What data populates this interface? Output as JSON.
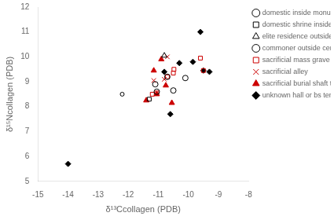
{
  "chart_data": {
    "type": "scatter",
    "xlabel": "δ¹³Ccollagen (PDB)",
    "ylabel": "δ¹⁵Ncollagen (PDB)",
    "xlim": [
      -15,
      -8
    ],
    "ylim": [
      5,
      12
    ],
    "xticks": [
      -15,
      -14,
      -13,
      -12,
      -11,
      -10,
      -9,
      -8
    ],
    "yticks": [
      5,
      6,
      7,
      8,
      9,
      10,
      11,
      12
    ],
    "grid": false,
    "legend": "right",
    "series": [
      {
        "name": "domestic inside monumental zone",
        "color": "#000000",
        "marker": "open_circle",
        "x": [
          -11.1,
          -11.05,
          -10.7,
          -10.5,
          -10.1
        ],
        "values": [
          8.9,
          8.6,
          9.2,
          8.65,
          9.15
        ]
      },
      {
        "name": "domestic shrine inside",
        "color": "#000000",
        "marker": "open_square",
        "x": [
          -11.3
        ],
        "values": [
          8.3
        ]
      },
      {
        "name": "elite residence outside center",
        "color": "#000000",
        "marker": "open_triangle",
        "x": [
          -10.8
        ],
        "values": [
          10.05
        ]
      },
      {
        "name": "commoner outside center",
        "color": "#000000",
        "marker": "small_open_circle",
        "x": [
          -12.2
        ],
        "values": [
          8.5
        ]
      },
      {
        "name": "sacrificial mass grave",
        "color": "#cc0000",
        "marker": "open_square",
        "x": [
          -11.2,
          -11.05,
          -10.7,
          -10.5,
          -10.48,
          -9.6,
          -9.5
        ],
        "values": [
          8.5,
          8.55,
          9.2,
          9.35,
          9.5,
          9.95,
          9.45
        ]
      },
      {
        "name": "sacrificial alley",
        "color": "#cc0000",
        "marker": "x",
        "x": [
          -11.15,
          -10.8,
          -10.7
        ],
        "values": [
          9.05,
          9.1,
          10.0
        ]
      },
      {
        "name": "sacrificial burial shaft temple",
        "color": "#cc0000",
        "marker": "filled_triangle",
        "x": [
          -11.4,
          -11.15,
          -11.05,
          -10.9,
          -10.75,
          -10.55
        ],
        "values": [
          8.25,
          9.45,
          8.5,
          9.9,
          8.85,
          8.15
        ]
      },
      {
        "name": "unknown hall or bs temple",
        "color": "#000000",
        "marker": "filled_diamond",
        "x": [
          -14.0,
          -10.8,
          -10.6,
          -10.3,
          -9.85,
          -9.6,
          -9.5,
          -9.3
        ],
        "values": [
          5.7,
          9.4,
          7.7,
          9.75,
          9.8,
          11.0,
          9.45,
          9.4
        ]
      }
    ]
  }
}
